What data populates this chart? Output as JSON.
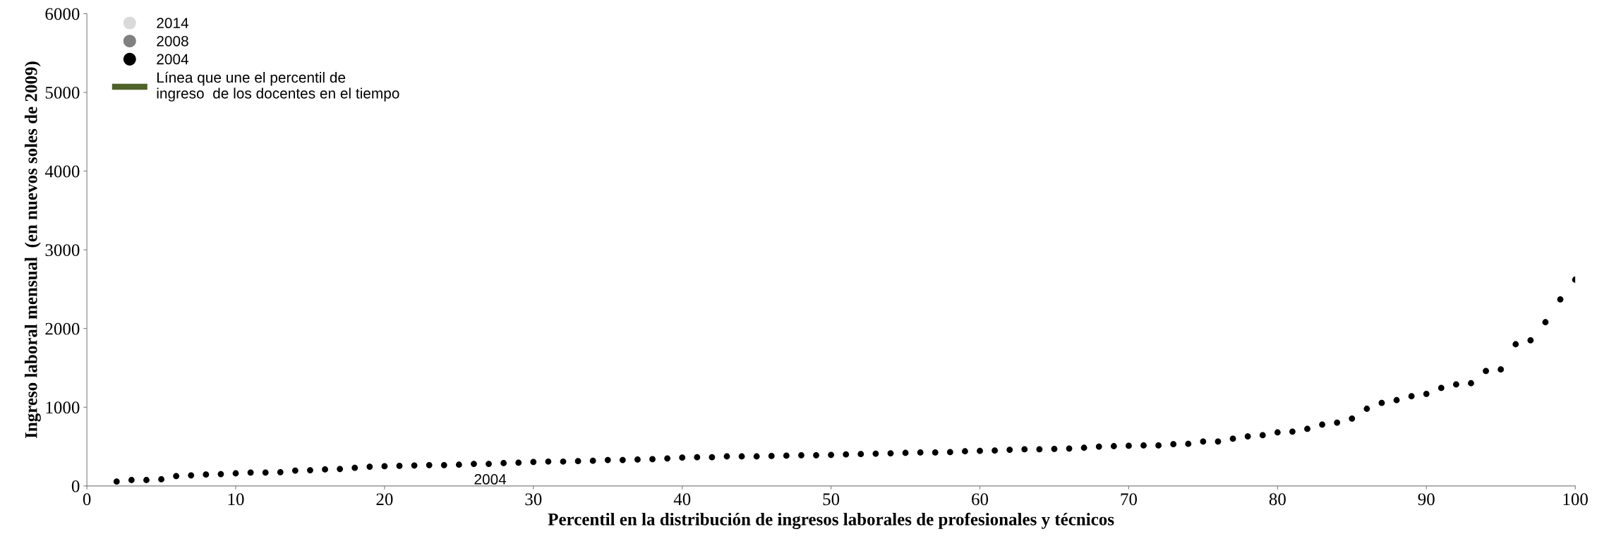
{
  "chart_data": {
    "type": "scatter",
    "xlabel": "Percentil en la distribución de ingresos laborales de profesionales y técnicos",
    "ylabel": "Ingreso laboral mensual  (en nuevos soles de 2009)",
    "xlim": [
      0,
      100
    ],
    "xticks": [
      0,
      10,
      20,
      30,
      40,
      50,
      60,
      70,
      80,
      90,
      100
    ],
    "ylim": [
      0,
      6000
    ],
    "yticks": [
      0,
      1000,
      2000,
      3000,
      4000,
      5000,
      6000
    ],
    "grid": false,
    "legend": "top left",
    "marker": "circle",
    "series": [
      {
        "name": "2014",
        "color": "#d9d9d9"
      },
      {
        "name": "2008",
        "color": "#808080"
      },
      {
        "name": "2004",
        "color": "#000000",
        "x": [
          2,
          3,
          4,
          5,
          6,
          7,
          8,
          9,
          10,
          11,
          12,
          13,
          14,
          15,
          16,
          17,
          18,
          19,
          20,
          21,
          22,
          23,
          24,
          25,
          26,
          27,
          28,
          29,
          30,
          31,
          32,
          33,
          34,
          35,
          36,
          37,
          38,
          39,
          40,
          41,
          42,
          43,
          44,
          45,
          46,
          47,
          48,
          49,
          50,
          51,
          52,
          53,
          54,
          55,
          56,
          57,
          58,
          59,
          60,
          61,
          62,
          63,
          64,
          65,
          66,
          67,
          68,
          69,
          70,
          71,
          72,
          73,
          74,
          75,
          76,
          77,
          78,
          79,
          80,
          81,
          82,
          83,
          84,
          85,
          86,
          87,
          88,
          89,
          90,
          91,
          92,
          93,
          94,
          95,
          96,
          97,
          98,
          99,
          100
        ],
        "values": [
          55,
          75,
          75,
          85,
          125,
          135,
          145,
          150,
          160,
          170,
          170,
          175,
          195,
          200,
          210,
          215,
          230,
          245,
          250,
          255,
          260,
          265,
          265,
          270,
          280,
          280,
          290,
          295,
          305,
          310,
          310,
          315,
          320,
          330,
          330,
          335,
          340,
          350,
          360,
          365,
          365,
          375,
          375,
          375,
          380,
          385,
          390,
          390,
          395,
          400,
          405,
          410,
          415,
          420,
          425,
          425,
          430,
          440,
          445,
          450,
          460,
          465,
          465,
          470,
          475,
          485,
          500,
          505,
          510,
          515,
          515,
          530,
          535,
          565,
          565,
          600,
          630,
          645,
          680,
          690,
          725,
          780,
          805,
          855,
          980,
          1055,
          1090,
          1140,
          1170,
          1245,
          1290,
          1305,
          1460,
          1480,
          1800,
          1850,
          2080,
          2370,
          2620
        ]
      },
      {
        "name": "Línea que une el percentil de\ningreso  de los docentes en el tiempo",
        "type": "line",
        "color": "#4f6228"
      }
    ],
    "annotations": [
      {
        "text": "2004",
        "x": 26,
        "y": 280
      }
    ]
  }
}
